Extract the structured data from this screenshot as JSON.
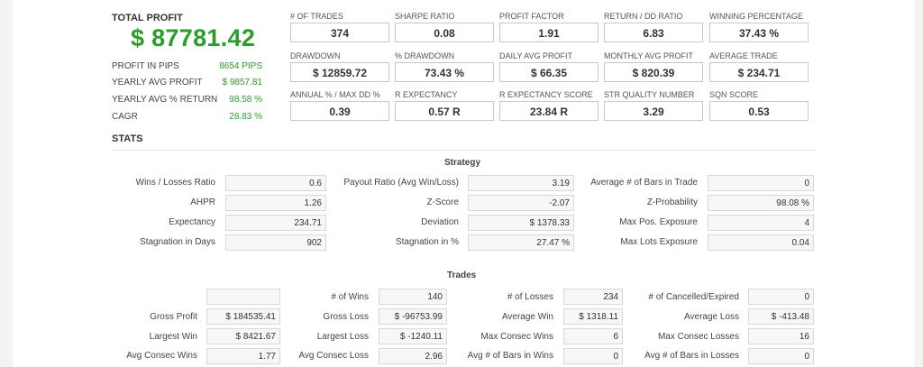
{
  "summary": {
    "total_profit_label": "TOTAL PROFIT",
    "total_profit_value": "$ 87781.42",
    "rows": [
      {
        "label": "PROFIT IN PIPS",
        "value": "8654 PIPS"
      },
      {
        "label": "YEARLY AVG PROFIT",
        "value": "$ 9857.81"
      },
      {
        "label": "YEARLY AVG % RETURN",
        "value": "98.58 %"
      },
      {
        "label": "CAGR",
        "value": "28.83 %"
      }
    ]
  },
  "metrics": [
    [
      {
        "label": "# OF TRADES",
        "value": "374"
      },
      {
        "label": "SHARPE RATIO",
        "value": "0.08"
      },
      {
        "label": "PROFIT FACTOR",
        "value": "1.91"
      },
      {
        "label": "RETURN / DD RATIO",
        "value": "6.83"
      },
      {
        "label": "WINNING PERCENTAGE",
        "value": "37.43 %"
      }
    ],
    [
      {
        "label": "DRAWDOWN",
        "value": "$ 12859.72"
      },
      {
        "label": "% DRAWDOWN",
        "value": "73.43 %"
      },
      {
        "label": "DAILY AVG PROFIT",
        "value": "$ 66.35"
      },
      {
        "label": "MONTHLY AVG PROFIT",
        "value": "$ 820.39"
      },
      {
        "label": "AVERAGE TRADE",
        "value": "$ 234.71"
      }
    ],
    [
      {
        "label": "ANNUAL % / MAX DD %",
        "value": "0.39"
      },
      {
        "label": "R EXPECTANCY",
        "value": "0.57 R"
      },
      {
        "label": "R EXPECTANCY SCORE",
        "value": "23.84 R"
      },
      {
        "label": "STR QUALITY NUMBER",
        "value": "3.29"
      },
      {
        "label": "SQN SCORE",
        "value": "0.53"
      }
    ]
  ],
  "stats_title": "STATS",
  "strategy": {
    "title": "Strategy",
    "rows": [
      [
        {
          "label": "Wins / Losses Ratio",
          "value": "0.6"
        },
        {
          "label": "Payout Ratio (Avg Win/Loss)",
          "value": "3.19"
        },
        {
          "label": "Average # of Bars in Trade",
          "value": "0"
        }
      ],
      [
        {
          "label": "AHPR",
          "value": "1.26"
        },
        {
          "label": "Z-Score",
          "value": "-2.07"
        },
        {
          "label": "Z-Probability",
          "value": "98.08 %"
        }
      ],
      [
        {
          "label": "Expectancy",
          "value": "234.71"
        },
        {
          "label": "Deviation",
          "value": "$ 1378.33"
        },
        {
          "label": "Max Pos. Exposure",
          "value": "4"
        }
      ],
      [
        {
          "label": "Stagnation in Days",
          "value": "902"
        },
        {
          "label": "Stagnation in %",
          "value": "27.47 %"
        },
        {
          "label": "Max Lots Exposure",
          "value": "0.04"
        }
      ]
    ]
  },
  "trades": {
    "title": "Trades",
    "rows": [
      [
        {
          "label": "",
          "value": ""
        },
        {
          "label": "# of Wins",
          "value": "140"
        },
        {
          "label": "# of Losses",
          "value": "234"
        },
        {
          "label": "# of Cancelled/Expired",
          "value": "0"
        }
      ],
      [
        {
          "label": "Gross Profit",
          "value": "$ 184535.41"
        },
        {
          "label": "Gross Loss",
          "value": "$ -96753.99"
        },
        {
          "label": "Average Win",
          "value": "$ 1318.11"
        },
        {
          "label": "Average Loss",
          "value": "$ -413.48"
        }
      ],
      [
        {
          "label": "Largest Win",
          "value": "$ 8421.67"
        },
        {
          "label": "Largest Loss",
          "value": "$ -1240.11"
        },
        {
          "label": "Max Consec Wins",
          "value": "6"
        },
        {
          "label": "Max Consec Losses",
          "value": "16"
        }
      ],
      [
        {
          "label": "Avg Consec Wins",
          "value": "1.77"
        },
        {
          "label": "Avg Consec Loss",
          "value": "2.96"
        },
        {
          "label": "Avg # of Bars in Wins",
          "value": "0"
        },
        {
          "label": "Avg # of Bars in Losses",
          "value": "0"
        }
      ]
    ]
  }
}
